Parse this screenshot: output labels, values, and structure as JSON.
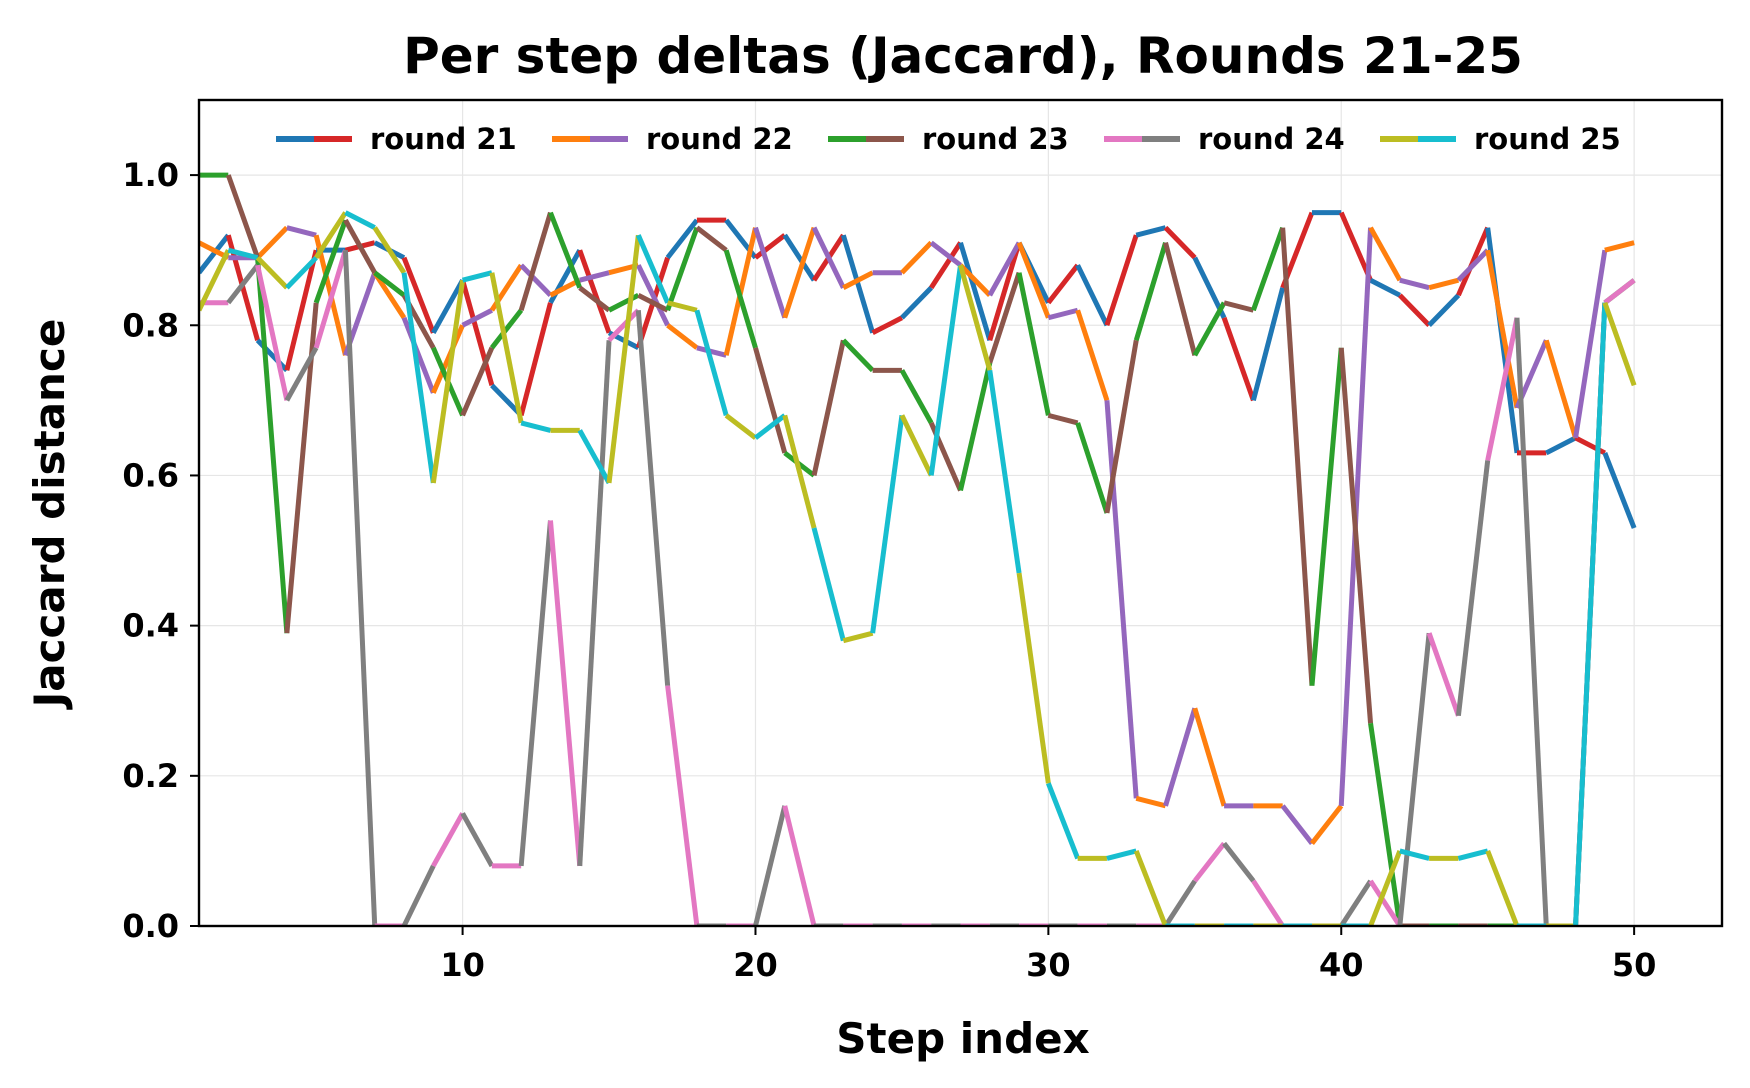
{
  "chart_data": {
    "type": "line",
    "title": "Per step deltas (Jaccard), Rounds 21-25",
    "xlabel": "Step index",
    "ylabel": "Jaccard distance",
    "xlim": [
      1,
      53
    ],
    "ylim": [
      0,
      1.1
    ],
    "xticks": [
      10,
      20,
      30,
      40,
      50
    ],
    "yticks": [
      0.0,
      0.2,
      0.4,
      0.6,
      0.8,
      1.0
    ],
    "xtick_labels": [
      "10",
      "20",
      "30",
      "40",
      "50"
    ],
    "ytick_labels": [
      "0.0",
      "0.2",
      "0.4",
      "0.6",
      "0.8",
      "1.0"
    ],
    "grid": true,
    "legend_position": "top",
    "x": [
      1,
      2,
      3,
      4,
      5,
      6,
      7,
      8,
      9,
      10,
      11,
      12,
      13,
      14,
      15,
      16,
      17,
      18,
      19,
      20,
      21,
      22,
      23,
      24,
      25,
      26,
      27,
      28,
      29,
      30,
      31,
      32,
      33,
      34,
      35,
      36,
      37,
      38,
      39,
      40,
      41,
      42,
      43,
      44,
      45,
      46,
      47,
      48,
      49,
      50
    ],
    "series": [
      {
        "name": "round 21",
        "colors": [
          "#1f77b4",
          "#d62728"
        ],
        "values": [
          0.87,
          0.92,
          0.78,
          0.74,
          0.9,
          0.9,
          0.91,
          0.89,
          0.79,
          0.86,
          0.72,
          0.68,
          0.83,
          0.9,
          0.79,
          0.77,
          0.89,
          0.94,
          0.94,
          0.89,
          0.92,
          0.86,
          0.92,
          0.79,
          0.81,
          0.85,
          0.91,
          0.78,
          0.91,
          0.83,
          0.88,
          0.8,
          0.92,
          0.93,
          0.89,
          0.81,
          0.7,
          0.85,
          0.95,
          0.95,
          0.86,
          0.84,
          0.8,
          0.84,
          0.93,
          0.63,
          0.63,
          0.65,
          0.63,
          0.53
        ]
      },
      {
        "name": "round 22",
        "colors": [
          "#ff7f0e",
          "#9467bd"
        ],
        "values": [
          0.91,
          0.89,
          0.89,
          0.93,
          0.92,
          0.76,
          0.87,
          0.81,
          0.71,
          0.8,
          0.82,
          0.88,
          0.84,
          0.86,
          0.87,
          0.88,
          0.8,
          0.77,
          0.76,
          0.93,
          0.81,
          0.93,
          0.85,
          0.87,
          0.87,
          0.91,
          0.88,
          0.84,
          0.91,
          0.81,
          0.82,
          0.7,
          0.17,
          0.16,
          0.29,
          0.16,
          0.16,
          0.16,
          0.11,
          0.16,
          0.93,
          0.86,
          0.85,
          0.86,
          0.9,
          0.69,
          0.78,
          0.65,
          0.9,
          0.91
        ]
      },
      {
        "name": "round 23",
        "colors": [
          "#2ca02c",
          "#8c564b"
        ],
        "values": [
          1.0,
          1.0,
          0.89,
          0.39,
          0.83,
          0.94,
          0.87,
          0.84,
          0.77,
          0.68,
          0.77,
          0.82,
          0.95,
          0.85,
          0.82,
          0.84,
          0.82,
          0.93,
          0.9,
          0.77,
          0.63,
          0.6,
          0.78,
          0.74,
          0.74,
          0.67,
          0.58,
          0.75,
          0.87,
          0.68,
          0.67,
          0.55,
          0.78,
          0.91,
          0.76,
          0.83,
          0.82,
          0.93,
          0.32,
          0.77,
          0.27,
          0.0,
          0.0,
          0.0,
          0.0,
          0.0,
          0.0,
          0.0,
          0.83,
          0.86
        ]
      },
      {
        "name": "round 24",
        "colors": [
          "#e377c2",
          "#7f7f7f"
        ],
        "values": [
          0.83,
          0.83,
          0.88,
          0.7,
          0.77,
          0.9,
          0.0,
          0.0,
          0.08,
          0.15,
          0.08,
          0.08,
          0.54,
          0.08,
          0.78,
          0.82,
          0.32,
          0.0,
          0.0,
          0.0,
          0.16,
          0.0,
          0.0,
          0.0,
          0.0,
          0.0,
          0.0,
          0.0,
          0.0,
          0.0,
          0.0,
          0.0,
          0.0,
          0.0,
          0.06,
          0.11,
          0.06,
          0.0,
          0.0,
          0.0,
          0.06,
          0.0,
          0.39,
          0.28,
          0.62,
          0.81,
          0.0,
          0.0,
          0.83,
          0.86
        ]
      },
      {
        "name": "round 25",
        "colors": [
          "#bcbd22",
          "#17becf"
        ],
        "values": [
          0.82,
          0.9,
          0.89,
          0.85,
          0.89,
          0.95,
          0.93,
          0.87,
          0.59,
          0.86,
          0.87,
          0.67,
          0.66,
          0.66,
          0.59,
          0.92,
          0.83,
          0.82,
          0.68,
          0.65,
          0.68,
          0.53,
          0.38,
          0.39,
          0.68,
          0.6,
          0.88,
          0.74,
          0.47,
          0.19,
          0.09,
          0.09,
          0.1,
          0.0,
          0.0,
          0.0,
          0.0,
          0.0,
          0.0,
          0.0,
          0.0,
          0.1,
          0.09,
          0.09,
          0.1,
          0.0,
          0.0,
          0.0,
          0.83,
          0.72
        ]
      }
    ]
  }
}
